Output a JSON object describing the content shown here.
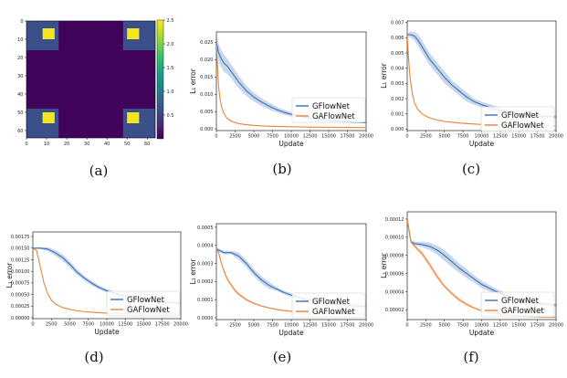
{
  "chart_data": [
    {
      "panel": "a",
      "caption": "(a)",
      "type": "heatmap",
      "grid_size": 64,
      "xticks": [
        "0",
        "10",
        "20",
        "30",
        "40",
        "50",
        "60"
      ],
      "yticks": [
        "0",
        "10",
        "20",
        "30",
        "40",
        "50",
        "60"
      ],
      "colorbar": {
        "ticks": [
          "0.5",
          "1.0",
          "1.5",
          "2.0",
          "2.5"
        ],
        "range": [
          0,
          2.5
        ]
      },
      "base_value": 0.0,
      "corner_region_value": 0.5,
      "corner_region_extent": 16,
      "peak_value": 2.5,
      "peak_cells": [
        [
          8,
          14,
          4,
          10
        ],
        [
          50,
          56,
          4,
          10
        ],
        [
          8,
          14,
          50,
          56
        ],
        [
          50,
          56,
          50,
          56
        ]
      ]
    },
    {
      "panel": "b",
      "caption": "(b)",
      "type": "line",
      "xlabel": "Update",
      "ylabel": "L₁ error",
      "xlim": [
        0,
        20000
      ],
      "ylim": [
        -0.0005,
        0.028
      ],
      "xticks": [
        "0",
        "2500",
        "5000",
        "7500",
        "10000",
        "12500",
        "15000",
        "17500",
        "20000"
      ],
      "yticks": [
        "0.000",
        "0.005",
        "0.010",
        "0.015",
        "0.020",
        "0.025"
      ],
      "legend": [
        "GFlowNet",
        "GAFlowNet"
      ],
      "series": [
        {
          "name": "GFlowNet",
          "color": "#3b6fb6",
          "x": [
            0,
            300,
            600,
            1000,
            1500,
            2000,
            2500,
            3000,
            4000,
            5000,
            6000,
            7000,
            8000,
            9000,
            10000,
            12000,
            14000,
            16000,
            18000,
            20000
          ],
          "values": [
            0.025,
            0.022,
            0.0205,
            0.019,
            0.018,
            0.0165,
            0.015,
            0.0135,
            0.011,
            0.0092,
            0.0078,
            0.0066,
            0.0056,
            0.0048,
            0.0042,
            0.0033,
            0.0027,
            0.0023,
            0.002,
            0.0018
          ],
          "band": [
            0.002,
            0.0025,
            0.0025,
            0.0025,
            0.0022,
            0.002,
            0.002,
            0.0018,
            0.0015,
            0.0013,
            0.0011,
            0.001,
            0.0008,
            0.0007,
            0.0006,
            0.0005,
            0.0004,
            0.0003,
            0.0003,
            0.0002
          ]
        },
        {
          "name": "GAFlowNet",
          "color": "#e8853d",
          "x": [
            0,
            150,
            300,
            500,
            700,
            1000,
            1300,
            1700,
            2200,
            3000,
            4000,
            5000,
            6500,
            8000,
            10000,
            12500,
            15000,
            17500,
            20000
          ],
          "values": [
            0.025,
            0.018,
            0.012,
            0.0085,
            0.0063,
            0.0045,
            0.0034,
            0.0026,
            0.002,
            0.0015,
            0.0012,
            0.001,
            0.0008,
            0.0007,
            0.0006,
            0.0005,
            0.00045,
            0.0004,
            0.00035
          ],
          "band": [
            0.0005,
            0.0005,
            0.0004,
            0.0003,
            0.0002,
            0.0002,
            0.0001,
            0.0001,
            0.0001,
            0.0001,
            0.0001,
            0.0001,
            0.0001,
            0.0001,
            0.0001,
            0.0001,
            0.0001,
            0.0001,
            0.0001
          ]
        }
      ]
    },
    {
      "panel": "c",
      "caption": "(c)",
      "type": "line",
      "xlabel": "Update",
      "ylabel": "L₁ error",
      "xlim": [
        0,
        20000
      ],
      "ylim": [
        -0.0001,
        0.0071
      ],
      "xticks": [
        "0",
        "2500",
        "5000",
        "7500",
        "10000",
        "12500",
        "15000",
        "17500",
        "20000"
      ],
      "yticks": [
        "0.000",
        "0.001",
        "0.002",
        "0.003",
        "0.004",
        "0.005",
        "0.006",
        "0.007"
      ],
      "legend": [
        "GFlowNet",
        "GAFlowNet"
      ],
      "series": [
        {
          "name": "GFlowNet",
          "color": "#3b6fb6",
          "x": [
            0,
            500,
            1000,
            1500,
            2000,
            2500,
            3000,
            4000,
            5000,
            6000,
            7000,
            8000,
            9000,
            10000,
            12000,
            14000,
            16000,
            18000,
            20000
          ],
          "values": [
            0.0062,
            0.0062,
            0.0061,
            0.0058,
            0.0054,
            0.005,
            0.0046,
            0.004,
            0.0034,
            0.0029,
            0.0025,
            0.0021,
            0.0018,
            0.0016,
            0.0013,
            0.0011,
            0.00095,
            0.00085,
            0.0008
          ],
          "band": [
            0.0001,
            0.0002,
            0.0003,
            0.0004,
            0.0004,
            0.0004,
            0.0004,
            0.0004,
            0.0004,
            0.0003,
            0.0003,
            0.0003,
            0.0002,
            0.0002,
            0.0002,
            0.0001,
            0.0001,
            0.0001,
            0.0001
          ]
        },
        {
          "name": "GAFlowNet",
          "color": "#e8853d",
          "x": [
            0,
            200,
            400,
            700,
            1000,
            1400,
            2000,
            2700,
            3500,
            5000,
            6500,
            8000,
            10000,
            12500,
            15000,
            17500,
            20000
          ],
          "values": [
            0.0062,
            0.0045,
            0.0033,
            0.0023,
            0.0017,
            0.0013,
            0.001,
            0.0008,
            0.00065,
            0.0005,
            0.00042,
            0.00036,
            0.0003,
            0.00026,
            0.00023,
            0.00021,
            0.0002
          ],
          "band": [
            0.0001,
            0.0001,
            0.0001,
            0.0001,
            5e-05,
            5e-05,
            4e-05,
            4e-05,
            3e-05,
            3e-05,
            3e-05,
            3e-05,
            2e-05,
            2e-05,
            2e-05,
            2e-05,
            2e-05
          ]
        }
      ]
    },
    {
      "panel": "d",
      "caption": "(d)",
      "type": "line",
      "xlabel": "Update",
      "ylabel": "L₁ error",
      "xlim": [
        0,
        20000
      ],
      "ylim": [
        -2e-05,
        0.00185
      ],
      "xticks": [
        "0",
        "2500",
        "5000",
        "7500",
        "10000",
        "12500",
        "15000",
        "17500",
        "20000"
      ],
      "yticks": [
        "0.00000",
        "0.00025",
        "0.00050",
        "0.00075",
        "0.00100",
        "0.00125",
        "0.00150",
        "0.00175"
      ],
      "legend": [
        "GFlowNet",
        "GAFlowNet"
      ],
      "series": [
        {
          "name": "GFlowNet",
          "color": "#3b6fb6",
          "x": [
            0,
            1000,
            2000,
            3000,
            4000,
            5000,
            6000,
            7000,
            8000,
            9000,
            10000,
            12000,
            14000,
            16000,
            18000,
            20000
          ],
          "values": [
            0.0015,
            0.0015,
            0.00148,
            0.0014,
            0.0013,
            0.00115,
            0.00098,
            0.00085,
            0.00074,
            0.00065,
            0.00058,
            0.00048,
            0.00041,
            0.00036,
            0.00033,
            0.00031
          ],
          "band": [
            1e-05,
            2e-05,
            4e-05,
            6e-05,
            7e-05,
            7e-05,
            6e-05,
            5e-05,
            5e-05,
            4e-05,
            4e-05,
            3e-05,
            3e-05,
            2e-05,
            2e-05,
            2e-05
          ]
        },
        {
          "name": "GAFlowNet",
          "color": "#e8853d",
          "x": [
            0,
            500,
            1000,
            1500,
            2000,
            2500,
            3000,
            4000,
            5000,
            6000,
            7000,
            8000,
            10000,
            12500,
            15000,
            17500,
            20000
          ],
          "values": [
            0.0015,
            0.00145,
            0.0011,
            0.00075,
            0.00052,
            0.00038,
            0.0003,
            0.00022,
            0.00018,
            0.00015,
            0.00013,
            0.00012,
            0.0001,
            9e-05,
            8e-05,
            8e-05,
            8e-05
          ],
          "band": [
            1e-05,
            2e-05,
            2e-05,
            2e-05,
            1e-05,
            1e-05,
            1e-05,
            1e-05,
            1e-05,
            1e-05,
            1e-05,
            1e-05,
            1e-05,
            1e-05,
            1e-05,
            1e-05,
            1e-05
          ]
        }
      ]
    },
    {
      "panel": "e",
      "caption": "(e)",
      "type": "line",
      "xlabel": "Update",
      "ylabel": "L₁ error",
      "xlim": [
        0,
        20000
      ],
      "ylim": [
        -1e-05,
        0.00052
      ],
      "xticks": [
        "0",
        "2500",
        "5000",
        "7500",
        "10000",
        "12500",
        "15000",
        "17500",
        "20000"
      ],
      "yticks": [
        "0.0000",
        "0.0001",
        "0.0002",
        "0.0003",
        "0.0004",
        "0.0005"
      ],
      "legend": [
        "GFlowNet",
        "GAFlowNet"
      ],
      "series": [
        {
          "name": "GFlowNet",
          "color": "#3b6fb6",
          "x": [
            0,
            500,
            1000,
            2000,
            3000,
            4000,
            5000,
            6000,
            7000,
            8000,
            9000,
            10000,
            12000,
            14000,
            16000,
            18000,
            20000
          ],
          "values": [
            0.00038,
            0.00037,
            0.00036,
            0.00036,
            0.00034,
            0.0003,
            0.00025,
            0.00021,
            0.00018,
            0.00016,
            0.00014,
            0.000125,
            0.0001,
            8.5e-05,
            7.5e-05,
            6.8e-05,
            6.2e-05
          ],
          "band": [
            1e-05,
            1e-05,
            1e-05,
            1e-05,
            2e-05,
            2e-05,
            2e-05,
            2e-05,
            2e-05,
            1e-05,
            1e-05,
            1e-05,
            1e-05,
            1e-05,
            1e-05,
            1e-05,
            1e-05
          ]
        },
        {
          "name": "GAFlowNet",
          "color": "#e8853d",
          "x": [
            0,
            300,
            600,
            1000,
            1500,
            2000,
            2500,
            3000,
            4000,
            5000,
            6000,
            7500,
            9000,
            11000,
            13000,
            15000,
            17500,
            20000
          ],
          "values": [
            0.00038,
            0.00036,
            0.00031,
            0.00026,
            0.00021,
            0.00018,
            0.00015,
            0.00013,
            0.0001,
            8e-05,
            6.5e-05,
            5e-05,
            4e-05,
            3.2e-05,
            2.7e-05,
            2.4e-05,
            2.1e-05,
            2e-05
          ],
          "band": [
            1e-05,
            1e-05,
            1e-05,
            1e-05,
            1e-05,
            1e-05,
            1e-05,
            1e-05,
            8e-06,
            6e-06,
            5e-06,
            4e-06,
            4e-06,
            3e-06,
            3e-06,
            3e-06,
            3e-06,
            3e-06
          ]
        }
      ]
    },
    {
      "panel": "f",
      "caption": "(f)",
      "type": "line",
      "xlabel": "Update",
      "ylabel": "L₁ error",
      "xlim": [
        0,
        20000
      ],
      "ylim": [
        9.3e-06,
        0.000128
      ],
      "xticks": [
        "0",
        "2500",
        "5000",
        "7500",
        "10000",
        "12500",
        "15000",
        "17500",
        "20000"
      ],
      "yticks": [
        "0.00002",
        "0.00004",
        "0.00006",
        "0.00008",
        "0.00010",
        "0.00012"
      ],
      "legend": [
        "GFlowNet",
        "GAFlowNet"
      ],
      "series": [
        {
          "name": "GFlowNet",
          "color": "#3b6fb6",
          "x": [
            0,
            500,
            1000,
            2000,
            3000,
            4000,
            5000,
            6000,
            7000,
            8000,
            9000,
            10000,
            12000,
            14000,
            16000,
            18000,
            20000
          ],
          "values": [
            0.00012,
            9.5e-05,
            9.3e-05,
            9.2e-05,
            9e-05,
            8.6e-05,
            8e-05,
            7.3e-05,
            6.6e-05,
            6e-05,
            5.4e-05,
            4.8e-05,
            4e-05,
            3.4e-05,
            3e-05,
            2.7e-05,
            2.5e-05
          ],
          "band": [
            3e-06,
            2e-06,
            2e-06,
            3e-06,
            4e-06,
            5e-06,
            6e-06,
            6e-06,
            5e-06,
            5e-06,
            4e-06,
            4e-06,
            3e-06,
            2e-06,
            2e-06,
            2e-06,
            2e-06
          ]
        },
        {
          "name": "GAFlowNet",
          "color": "#e8853d",
          "x": [
            0,
            500,
            1000,
            2000,
            3000,
            4000,
            5000,
            6000,
            7000,
            8000,
            9000,
            10000,
            12000,
            14000,
            16000,
            18000,
            20000
          ],
          "values": [
            0.00012,
            9.5e-05,
            9e-05,
            8.2e-05,
            7e-05,
            5.7e-05,
            4.6e-05,
            3.8e-05,
            3.1e-05,
            2.6e-05,
            2.2e-05,
            1.9e-05,
            1.6e-05,
            1.4e-05,
            1.3e-05,
            1.2e-05,
            1.2e-05
          ],
          "band": [
            3e-06,
            2e-06,
            2e-06,
            3e-06,
            3e-06,
            3e-06,
            2e-06,
            2e-06,
            2e-06,
            2e-06,
            1e-06,
            1e-06,
            1e-06,
            1e-06,
            1e-06,
            1e-06,
            1e-06
          ]
        }
      ]
    }
  ]
}
